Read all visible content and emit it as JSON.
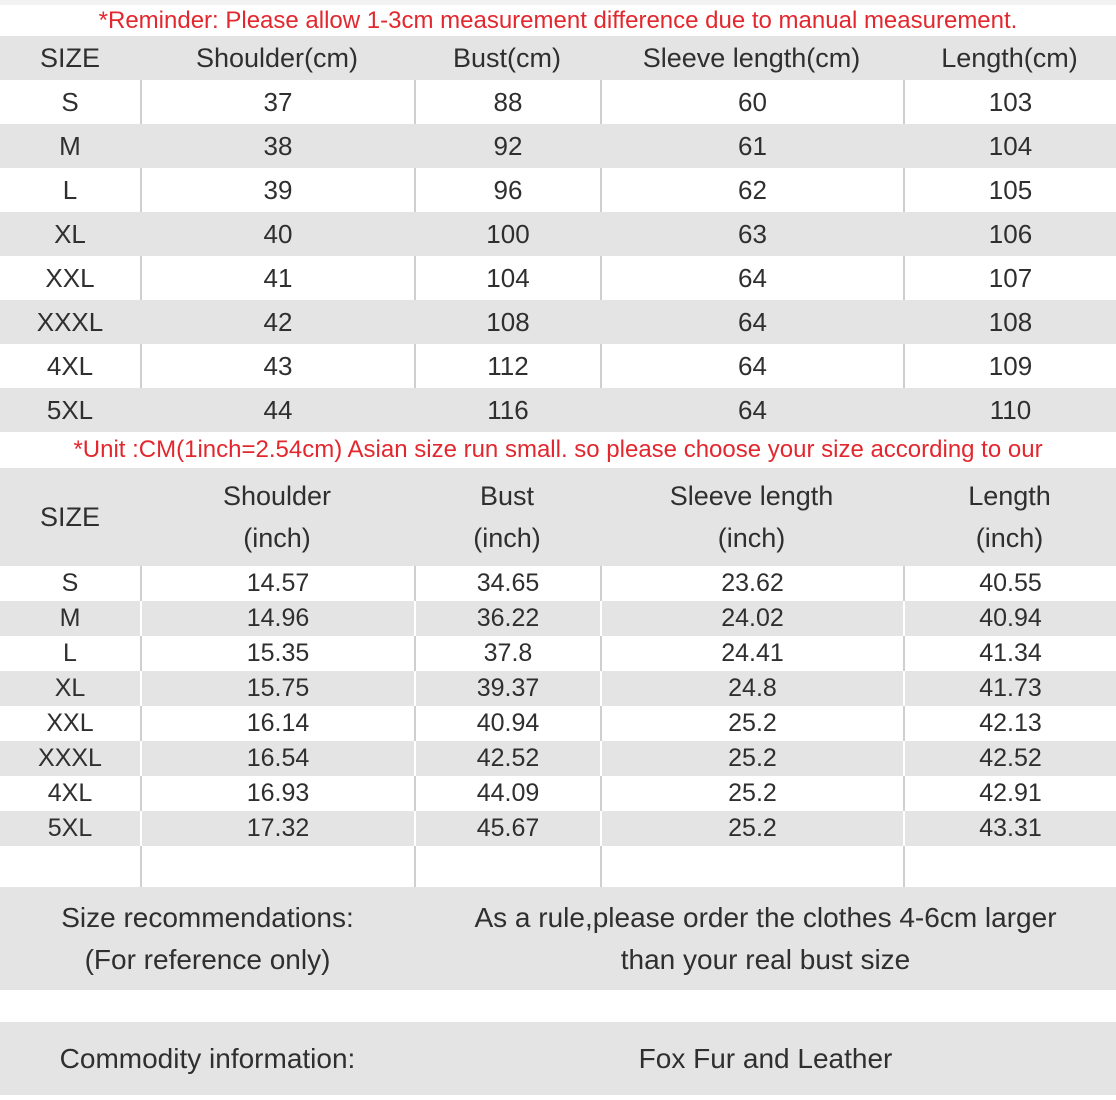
{
  "notes": {
    "reminder": "*Reminder: Please allow 1-3cm measurement difference due to manual measurement.",
    "unit": "*Unit :CM(1inch=2.54cm) Asian size run small. so please choose your size according to our"
  },
  "table_cm": {
    "headers": [
      "SIZE",
      "Shoulder(cm)",
      "Bust(cm)",
      "Sleeve length(cm)",
      "Length(cm)"
    ],
    "rows": [
      [
        "S",
        "37",
        "88",
        "60",
        "103"
      ],
      [
        "M",
        "38",
        "92",
        "61",
        "104"
      ],
      [
        "L",
        "39",
        "96",
        "62",
        "105"
      ],
      [
        "XL",
        "40",
        "100",
        "63",
        "106"
      ],
      [
        "XXL",
        "41",
        "104",
        "64",
        "107"
      ],
      [
        "XXXL",
        "42",
        "108",
        "64",
        "108"
      ],
      [
        "4XL",
        "43",
        "112",
        "64",
        "109"
      ],
      [
        "5XL",
        "44",
        "116",
        "64",
        "110"
      ]
    ]
  },
  "table_inch": {
    "size_header": "SIZE",
    "headers": [
      {
        "title": "Shoulder",
        "unit": "(inch)"
      },
      {
        "title": "Bust",
        "unit": "(inch)"
      },
      {
        "title": "Sleeve length",
        "unit": "(inch)"
      },
      {
        "title": "Length",
        "unit": "(inch)"
      }
    ],
    "rows": [
      [
        "S",
        "14.57",
        "34.65",
        "23.62",
        "40.55"
      ],
      [
        "M",
        "14.96",
        "36.22",
        "24.02",
        "40.94"
      ],
      [
        "L",
        "15.35",
        "37.8",
        "24.41",
        "41.34"
      ],
      [
        "XL",
        "15.75",
        "39.37",
        "24.8",
        "41.73"
      ],
      [
        "XXL",
        "16.14",
        "40.94",
        "25.2",
        "42.13"
      ],
      [
        "XXXL",
        "16.54",
        "42.52",
        "25.2",
        "42.52"
      ],
      [
        "4XL",
        "16.93",
        "44.09",
        "25.2",
        "42.91"
      ],
      [
        "5XL",
        "17.32",
        "45.67",
        "25.2",
        "43.31"
      ]
    ]
  },
  "size_recommendation": {
    "label_line1": "Size recommendations:",
    "label_line2": "(For reference only)",
    "note_line1": "As a rule,please order the clothes 4-6cm larger",
    "note_line2": "than your real bust size"
  },
  "commodity": {
    "label": "Commodity information:",
    "value": "Fox Fur and Leather"
  },
  "colors": {
    "accent_red": "#e2282e",
    "row_gray": "#e4e4e4",
    "divider_gray": "#cfcfcf",
    "text": "#2f2f2f"
  }
}
